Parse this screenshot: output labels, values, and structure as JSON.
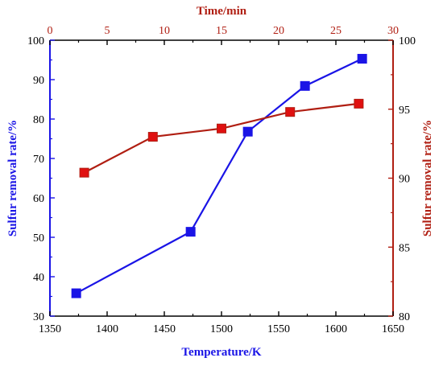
{
  "chart_data": {
    "type": "line",
    "title": "",
    "colors": {
      "blue": "#1a14e6",
      "red": "#b01e12",
      "marker_red": "#e01010",
      "axis": "#000000"
    },
    "axes": {
      "bottom": {
        "label": "Temperature/K",
        "range": [
          1350,
          1650
        ],
        "ticks": [
          "1350",
          "1400",
          "1450",
          "1500",
          "1550",
          "1600",
          "1650"
        ],
        "color": "#1a14e6"
      },
      "left": {
        "label": "Sulfur removal rate/%",
        "range": [
          30,
          100
        ],
        "ticks": [
          "30",
          "40",
          "50",
          "60",
          "70",
          "80",
          "90",
          "100"
        ],
        "color": "#1a14e6"
      },
      "top": {
        "label": "Time/min",
        "range": [
          0,
          30
        ],
        "ticks": [
          "0",
          "5",
          "10",
          "15",
          "20",
          "25",
          "30"
        ],
        "color": "#b01e12"
      },
      "right": {
        "label": "Sulfur removal rate/%",
        "range": [
          80,
          100
        ],
        "ticks": [
          "80",
          "85",
          "90",
          "95",
          "100"
        ],
        "color": "#b01e12"
      }
    },
    "grid": false,
    "legend": "none",
    "series": [
      {
        "axes": "bottom-left",
        "color": "#1a14e6",
        "marker": "square",
        "x": [
          1373,
          1473,
          1523,
          1573,
          1623
        ],
        "y": [
          35.8,
          51.4,
          76.8,
          88.4,
          95.3
        ]
      },
      {
        "axes": "top-right",
        "color": "#b01e12",
        "marker": "square",
        "x": [
          3,
          9,
          15,
          21,
          27
        ],
        "y": [
          90.4,
          93.0,
          93.6,
          94.8,
          95.4
        ]
      }
    ]
  }
}
